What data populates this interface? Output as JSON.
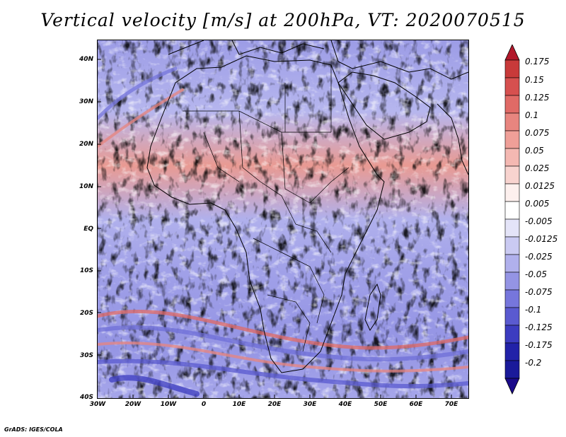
{
  "title": "Vertical velocity [m/s] at 200hPa, VT: 2020070515",
  "credit": "GrADS: IGES/COLA",
  "map": {
    "lat_labels": [
      "40N",
      "30N",
      "20N",
      "10N",
      "EQ",
      "10S",
      "20S",
      "30S",
      "40S"
    ],
    "lat_values": [
      40,
      30,
      20,
      10,
      0,
      -10,
      -20,
      -30,
      -40
    ],
    "lon_labels": [
      "30W",
      "20W",
      "10W",
      "0",
      "10E",
      "20E",
      "30E",
      "40E",
      "50E",
      "60E",
      "70E"
    ],
    "lon_values": [
      -30,
      -20,
      -10,
      0,
      10,
      20,
      30,
      40,
      50,
      60,
      70
    ],
    "lat_range": [
      -40,
      45
    ],
    "lon_range": [
      -30,
      75
    ],
    "field": "vertical velocity",
    "units": "m/s"
  },
  "colorbar": {
    "labels": [
      "0.175",
      "0.15",
      "0.125",
      "0.1",
      "0.075",
      "0.05",
      "0.025",
      "0.0125",
      "0.005",
      "-0.005",
      "-0.0125",
      "-0.025",
      "-0.05",
      "-0.075",
      "-0.1",
      "-0.125",
      "-0.175",
      "-0.2"
    ],
    "colors": [
      "#b2182b",
      "#c83a3a",
      "#d6504f",
      "#e06a66",
      "#e8857f",
      "#ef9f98",
      "#f4b8b2",
      "#f8d3cf",
      "#fdf0ee",
      "#ffffff",
      "#e4e4f8",
      "#cacaf2",
      "#b0b0ec",
      "#9494e4",
      "#7676dc",
      "#5a5ad0",
      "#3c3cc0",
      "#2222a8",
      "#1a0a8a"
    ]
  },
  "palette": {
    "blue": "#8c8ce6",
    "red": "#ee8c86",
    "white": "#ffffff",
    "coast": "#000000"
  }
}
